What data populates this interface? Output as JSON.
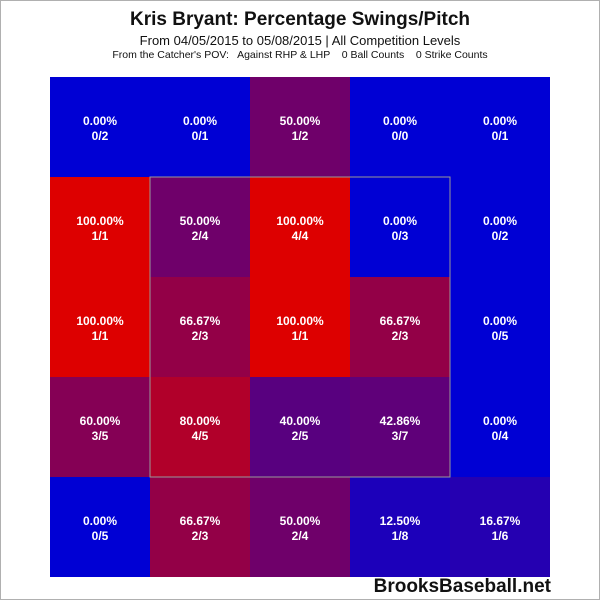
{
  "header": {
    "title": "Kris Bryant: Percentage Swings/Pitch",
    "subtitle": "From 04/05/2015 to 05/08/2015 | All Competition Levels",
    "filters": "From the Catcher's POV:   Against RHP & LHP    0 Ball Counts    0 Strike Counts"
  },
  "watermark": "BrooksBaseball.net",
  "colors": {
    "low": "#0000d4",
    "high": "#dd0000",
    "text": "#ffffff",
    "strike_zone_border": "#999999"
  },
  "chart_data": {
    "type": "heatmap",
    "title": "Kris Bryant: Percentage Swings/Pitch",
    "rows": 5,
    "cols": 5,
    "strike_zone": {
      "row_start": 1,
      "row_end": 3,
      "col_start": 1,
      "col_end": 3
    },
    "cells": [
      [
        {
          "pct": 0.0,
          "pct_label": "0.00%",
          "count_label": "0/2"
        },
        {
          "pct": 0.0,
          "pct_label": "0.00%",
          "count_label": "0/1"
        },
        {
          "pct": 50.0,
          "pct_label": "50.00%",
          "count_label": "1/2"
        },
        {
          "pct": 0.0,
          "pct_label": "0.00%",
          "count_label": "0/0"
        },
        {
          "pct": 0.0,
          "pct_label": "0.00%",
          "count_label": "0/1"
        }
      ],
      [
        {
          "pct": 100.0,
          "pct_label": "100.00%",
          "count_label": "1/1"
        },
        {
          "pct": 50.0,
          "pct_label": "50.00%",
          "count_label": "2/4"
        },
        {
          "pct": 100.0,
          "pct_label": "100.00%",
          "count_label": "4/4"
        },
        {
          "pct": 0.0,
          "pct_label": "0.00%",
          "count_label": "0/3"
        },
        {
          "pct": 0.0,
          "pct_label": "0.00%",
          "count_label": "0/2"
        }
      ],
      [
        {
          "pct": 100.0,
          "pct_label": "100.00%",
          "count_label": "1/1"
        },
        {
          "pct": 66.67,
          "pct_label": "66.67%",
          "count_label": "2/3"
        },
        {
          "pct": 100.0,
          "pct_label": "100.00%",
          "count_label": "1/1"
        },
        {
          "pct": 66.67,
          "pct_label": "66.67%",
          "count_label": "2/3"
        },
        {
          "pct": 0.0,
          "pct_label": "0.00%",
          "count_label": "0/5"
        }
      ],
      [
        {
          "pct": 60.0,
          "pct_label": "60.00%",
          "count_label": "3/5"
        },
        {
          "pct": 80.0,
          "pct_label": "80.00%",
          "count_label": "4/5"
        },
        {
          "pct": 40.0,
          "pct_label": "40.00%",
          "count_label": "2/5"
        },
        {
          "pct": 42.86,
          "pct_label": "42.86%",
          "count_label": "3/7"
        },
        {
          "pct": 0.0,
          "pct_label": "0.00%",
          "count_label": "0/4"
        }
      ],
      [
        {
          "pct": 0.0,
          "pct_label": "0.00%",
          "count_label": "0/5"
        },
        {
          "pct": 66.67,
          "pct_label": "66.67%",
          "count_label": "2/3"
        },
        {
          "pct": 50.0,
          "pct_label": "50.00%",
          "count_label": "2/4"
        },
        {
          "pct": 12.5,
          "pct_label": "12.50%",
          "count_label": "1/8"
        },
        {
          "pct": 16.67,
          "pct_label": "16.67%",
          "count_label": "1/6"
        }
      ]
    ]
  }
}
